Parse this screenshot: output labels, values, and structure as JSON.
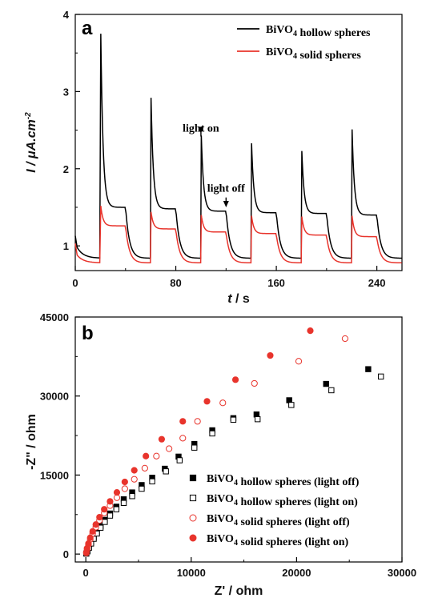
{
  "chart_data": [
    {
      "type": "line",
      "panel_label": "a",
      "xlabel": "t / s",
      "ylabel": "I / μA.cm-2",
      "xlim": [
        0,
        260
      ],
      "ylim": [
        0.68,
        4.0
      ],
      "x_ticks": [
        0,
        80,
        160,
        240
      ],
      "y_ticks": [
        1,
        2,
        3,
        4
      ],
      "legend_position": "top-right",
      "light_on_times": [
        20,
        60,
        100,
        140,
        180,
        220
      ],
      "light_off_times": [
        40,
        80,
        120,
        160,
        200,
        240
      ],
      "series": [
        {
          "name": "BiVO4 hollow spheres",
          "color": "#000000",
          "initial_dark": 0.98,
          "dark_baseline": 0.84,
          "spikes": [
            3.75,
            2.92,
            2.43,
            2.33,
            2.23,
            2.51
          ],
          "plateaus": [
            1.5,
            1.48,
            1.45,
            1.43,
            1.42,
            1.4
          ]
        },
        {
          "name": "BiVO4 solid spheres",
          "color": "#e8342c",
          "initial_dark": 0.88,
          "dark_baseline": 0.78,
          "spikes": [
            1.52,
            1.44,
            1.4,
            1.39,
            1.38,
            1.39
          ],
          "plateaus": [
            1.26,
            1.22,
            1.18,
            1.16,
            1.14,
            1.12
          ]
        }
      ],
      "annotations": [
        {
          "text": "light on",
          "x": 100,
          "y": 2.5
        },
        {
          "text": "light off",
          "x": 120,
          "y": 1.7
        }
      ]
    },
    {
      "type": "scatter",
      "panel_label": "b",
      "xlabel": "Z' / ohm",
      "ylabel": "-Z\" / ohm",
      "xlim": [
        -1000,
        30000
      ],
      "ylim": [
        -1500,
        45000
      ],
      "x_ticks": [
        0,
        10000,
        20000,
        30000
      ],
      "y_ticks": [
        0,
        15000,
        30000,
        45000
      ],
      "legend_position": "bottom-right",
      "series": [
        {
          "name": "BiVO4 hollow spheres (light off)",
          "marker": "square-filled",
          "color": "#000000",
          "x": [
            50,
            150,
            300,
            500,
            750,
            1050,
            1400,
            1800,
            2300,
            2900,
            3600,
            4400,
            5300,
            6300,
            7500,
            8800,
            10300,
            12000,
            14000,
            16200,
            19300,
            22800,
            26800
          ],
          "y": [
            100,
            600,
            1300,
            2200,
            3200,
            4200,
            5300,
            6500,
            7700,
            9000,
            10400,
            11700,
            13100,
            14500,
            16200,
            18500,
            20900,
            23500,
            25800,
            26500,
            29200,
            32300,
            35100
          ]
        },
        {
          "name": "BiVO4 hollow spheres (light on)",
          "marker": "square-open",
          "color": "#000000",
          "x": [
            50,
            150,
            300,
            500,
            750,
            1050,
            1400,
            1800,
            2300,
            2900,
            3600,
            4400,
            5300,
            6300,
            7600,
            8900,
            10300,
            12000,
            14000,
            16300,
            19500,
            23300,
            28000
          ],
          "y": [
            100,
            500,
            1200,
            2000,
            2900,
            3900,
            5000,
            6100,
            7300,
            8500,
            9700,
            11000,
            12400,
            13800,
            15700,
            17800,
            20200,
            22900,
            25500,
            25600,
            28300,
            31100,
            33700
          ]
        },
        {
          "name": "BiVO4 solid spheres (light off)",
          "marker": "circle-open",
          "color": "#e8342c",
          "x": [
            50,
            120,
            250,
            420,
            650,
            950,
            1300,
            1750,
            2300,
            2950,
            3700,
            4600,
            5600,
            6700,
            7900,
            9200,
            10600,
            13000,
            16000,
            20200,
            24600
          ],
          "y": [
            200,
            900,
            1800,
            2800,
            3900,
            5100,
            6400,
            7800,
            9200,
            10700,
            12400,
            14200,
            16300,
            18600,
            20000,
            22000,
            25200,
            28700,
            32400,
            36600,
            40900
          ]
        },
        {
          "name": "BiVO4 solid spheres (light on)",
          "marker": "circle-filled",
          "color": "#e8342c",
          "x": [
            50,
            120,
            250,
            420,
            650,
            950,
            1300,
            1750,
            2300,
            2950,
            3700,
            4600,
            5700,
            7200,
            9200,
            11500,
            14200,
            17500,
            21300
          ],
          "y": [
            300,
            1100,
            2000,
            3100,
            4300,
            5600,
            7000,
            8500,
            10000,
            11700,
            13700,
            15900,
            18600,
            21800,
            25200,
            29000,
            33100,
            37700,
            42400
          ]
        }
      ]
    }
  ]
}
